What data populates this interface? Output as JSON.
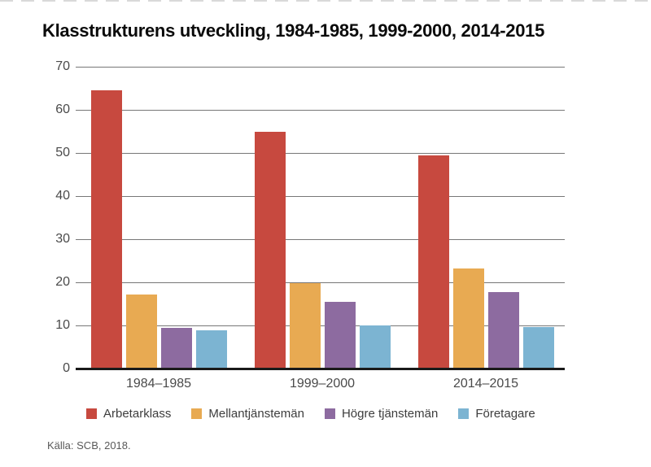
{
  "page": {
    "title": "Klasstrukturens utveckling, 1984-1985, 1999-2000, 2014-2015",
    "source": "Källa: SCB, 2018."
  },
  "chart_data": {
    "type": "bar",
    "title": "Klasstrukturens utveckling, 1984-1985, 1999-2000, 2014-2015",
    "categories": [
      "1984–1985",
      "1999–2000",
      "2014–2015"
    ],
    "series": [
      {
        "name": "Arbetarklass",
        "color": "#c7493f",
        "values": [
          64.5,
          55.0,
          49.4
        ]
      },
      {
        "name": "Mellantjänstemän",
        "color": "#e8aa52",
        "values": [
          17.1,
          19.9,
          23.2
        ]
      },
      {
        "name": "Högre tjänstemän",
        "color": "#8d6ba0",
        "values": [
          9.4,
          15.5,
          17.8
        ]
      },
      {
        "name": "Företagare",
        "color": "#7cb4d2",
        "values": [
          8.8,
          10.0,
          9.6
        ]
      }
    ],
    "xlabel": "",
    "ylabel": "",
    "ylim": [
      0,
      70
    ],
    "yticks": [
      0,
      10,
      20,
      30,
      40,
      50,
      60,
      70
    ],
    "grid": true,
    "legend_position": "bottom"
  },
  "colors": {
    "title_text": "#0b0b0b",
    "grid_line": "#777777",
    "axis_line": "#1a1a1a",
    "tick_label": "#4a4a4a",
    "legend_label": "#3d3d3d",
    "source_text": "#595959"
  }
}
